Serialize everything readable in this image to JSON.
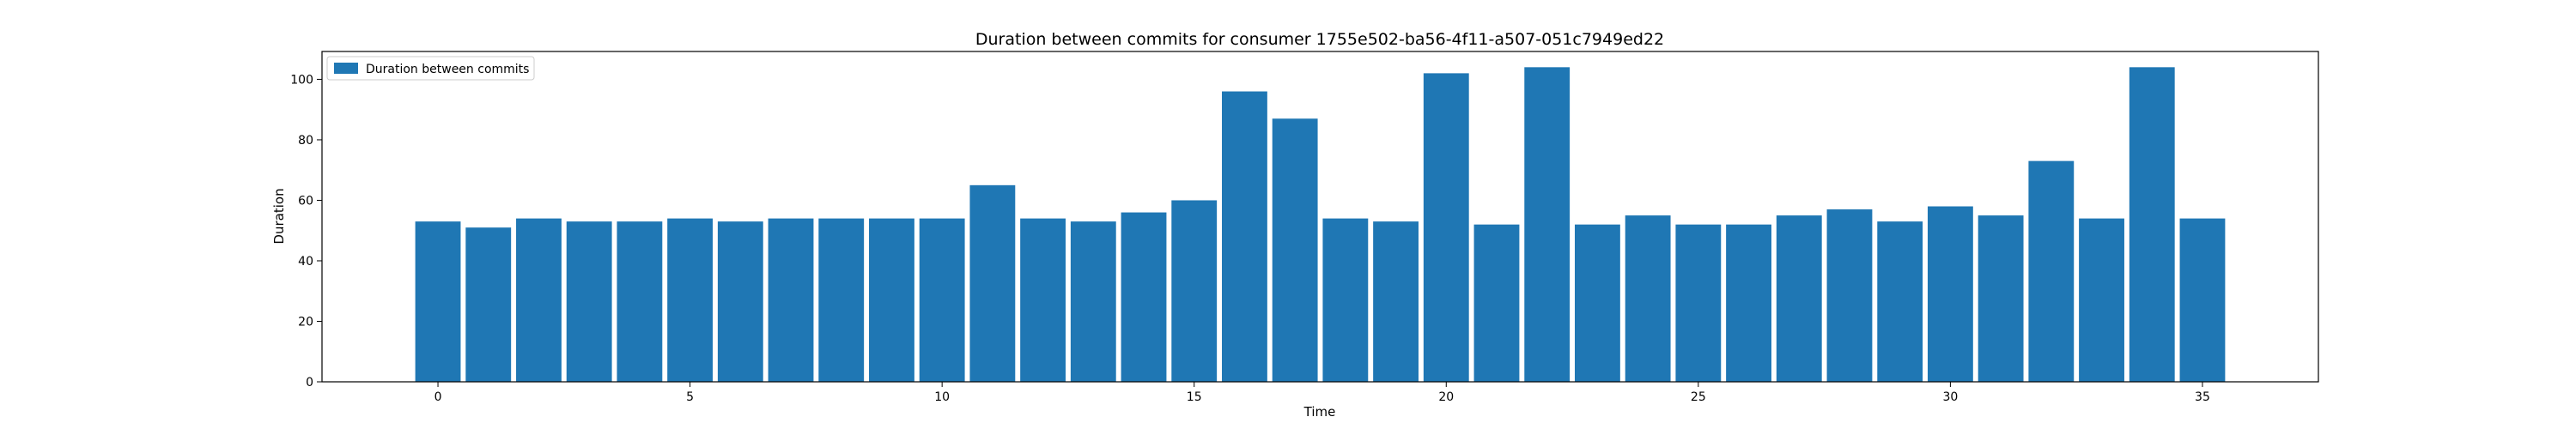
{
  "chart_data": {
    "type": "bar",
    "title": "Duration between commits for consumer 1755e502-ba56-4f11-a507-051c7949ed22",
    "xlabel": "Time",
    "ylabel": "Duration",
    "x": [
      0,
      1,
      2,
      3,
      4,
      5,
      6,
      7,
      8,
      9,
      10,
      11,
      12,
      13,
      14,
      15,
      16,
      17,
      18,
      19,
      20,
      21,
      22,
      23,
      24,
      25,
      26,
      27,
      28,
      29,
      30,
      31,
      32,
      33,
      34,
      35
    ],
    "values": [
      53,
      51,
      54,
      53,
      53,
      54,
      53,
      54,
      54,
      54,
      54,
      65,
      54,
      53,
      56,
      60,
      96,
      87,
      54,
      53,
      102,
      52,
      104,
      52,
      55,
      52,
      52,
      55,
      57,
      53,
      58,
      55,
      73,
      54,
      104,
      54
    ],
    "xlim": [
      -2.3,
      37.3
    ],
    "ylim": [
      0,
      109.2
    ],
    "xticks": [
      0,
      5,
      10,
      15,
      20,
      25,
      30,
      35
    ],
    "yticks": [
      0,
      20,
      40,
      60,
      80,
      100
    ],
    "series": [
      {
        "name": "Duration between commits",
        "color": "#1f77b4"
      }
    ],
    "legend": "top-left",
    "grid": false
  }
}
